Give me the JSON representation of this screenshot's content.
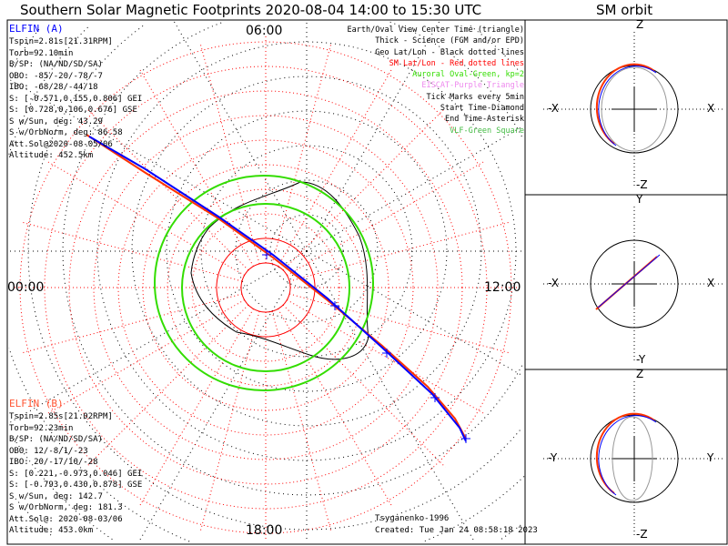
{
  "title": "Southern Solar Magnetic Footprints 2020-08-04 14:00 to 15:30 UTC",
  "sm_orbit_title": "SM orbit",
  "mlt_labels": {
    "top": "06:00",
    "right": "12:00",
    "bottom": "18:00",
    "left": "00:00"
  },
  "elfin_a": {
    "name": "ELFIN (A)",
    "lines": [
      "Tspin=2.81s[21.31RPM]",
      "Torb=92.10min",
      "B/SP: (NA/ND/SD/SA)",
      "OBO: -85/-20/-78/-7",
      "IBO: -68/28/-44/18",
      "S: [-0.571,0.155,0.806] GEI",
      "S: [0.728,0.106,0.676] GSE",
      "S w/Sun, deg: 43.29",
      "S w/OrbNorm, deg: 86.58",
      "Att.Sol@2020-08-05/06",
      "Altitude: 452.5km"
    ]
  },
  "elfin_b": {
    "name": "ELFIN (B)",
    "lines": [
      "Tspin=2.85s[21.02RPM]",
      "Torb=92.23min",
      "B/SP: (NA/ND/SD/SA)",
      "OBO: 12/-8/1/-23",
      "IBO: 20/-17/10/-28",
      "S: [0.221,-0.973,0.046] GEI",
      "S: [-0.793,0.430,0.878] GSE",
      "S w/Sun, deg: 142.7",
      "S w/OrbNorm, deg: 181.3",
      "Att.Sol@: 2020-08-03/06",
      "Altitude: 453.0km"
    ]
  },
  "legend": [
    {
      "text": "Earth/Oval View Center Time (triangle)",
      "color": "#000000"
    },
    {
      "text": "Thick - Science (FGM and/or EPD)",
      "color": "#000000"
    },
    {
      "text": "Geo Lat/Lon - Black dotted lines",
      "color": "#000000"
    },
    {
      "text": "SM Lat/Lon - Red dotted lines",
      "color": "#ff0000"
    },
    {
      "text": "Auroral Oval-Green, kp=2",
      "color": "#33dd00"
    },
    {
      "text": "EISCAT-Purple Triangle",
      "color": "#ee88ee"
    },
    {
      "text": "Tick Marks every 5min",
      "color": "#000000"
    },
    {
      "text": "Start Time-Diamond",
      "color": "#000000"
    },
    {
      "text": "End Time-Asterisk",
      "color": "#000000"
    },
    {
      "text": "VLF-Green Square",
      "color": "#44bb44"
    }
  ],
  "credit": "Tsyganenko-1996",
  "created": "Created: Tue Jan 24 08:58:18 2023",
  "orbit_panels": [
    {
      "top": "Z",
      "bottom": "-Z",
      "left": "-X",
      "right": "X"
    },
    {
      "top": "Y",
      "bottom": "-Y",
      "left": "-X",
      "right": "X"
    },
    {
      "top": "Z",
      "bottom": "-Z",
      "left": "-Y",
      "right": "Y"
    }
  ],
  "colors": {
    "elfin_a": "#0000ff",
    "elfin_b": "#ff3300",
    "oval": "#33dd00",
    "sm_grid": "#ff0000"
  },
  "chart_data": {
    "type": "polar-map",
    "title": "Southern Solar Magnetic Footprints 2020-08-04 14:00 to 15:30 UTC",
    "mlt_ticks": [
      "00:00",
      "06:00",
      "12:00",
      "18:00"
    ],
    "series": [
      {
        "name": "ELFIN (A)",
        "color": "#0000ff"
      },
      {
        "name": "ELFIN (B)",
        "color": "#ff3300"
      }
    ]
  }
}
